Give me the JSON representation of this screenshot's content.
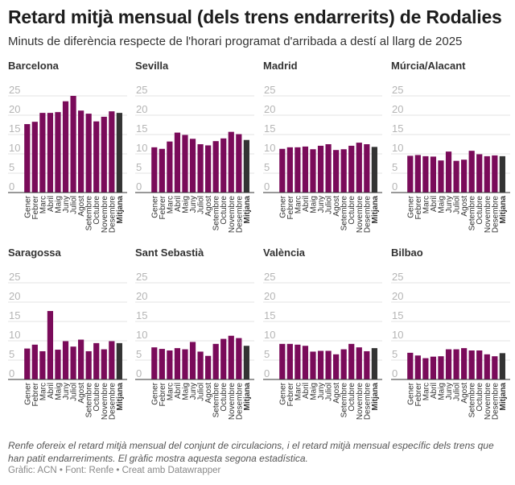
{
  "header": {
    "title": "Retard mitjà mensual (dels trens endarrerits) de Rodalies",
    "subtitle": "Minuts de diferència respecte de l'horari programat d'arribada a destí al llarg de 2025"
  },
  "colors": {
    "bar": "#7a0b5a",
    "average": "#333333",
    "grid": "#e3e3e3",
    "tick": "#b5b5b5"
  },
  "chart_data": [
    {
      "type": "bar",
      "title": "Barcelona",
      "categories": [
        "Gener",
        "Febrer",
        "Marc",
        "Abril",
        "Maig",
        "Juny",
        "Juliol",
        "Agost",
        "Setembre",
        "Octubre",
        "Novembre",
        "Desembre",
        "Mitjana"
      ],
      "values": [
        17.7,
        18.3,
        20.6,
        20.6,
        20.8,
        23.6,
        25.0,
        21.2,
        20.4,
        18.4,
        19.6,
        21.0,
        20.6
      ],
      "yticks": [
        0,
        5,
        10,
        15,
        20,
        25
      ],
      "ylim": [
        0,
        25
      ]
    },
    {
      "type": "bar",
      "title": "Sevilla",
      "categories": [
        "Gener",
        "Febrer",
        "Marc",
        "Abril",
        "Maig",
        "Juny",
        "Juliol",
        "Agost",
        "Setembre",
        "Octubre",
        "Novembre",
        "Desembre",
        "Mitjana"
      ],
      "values": [
        11.7,
        11.3,
        13.2,
        15.5,
        14.9,
        13.9,
        12.5,
        12.2,
        13.3,
        14.0,
        15.7,
        15.1,
        13.6
      ],
      "yticks": [
        0,
        5,
        10,
        15,
        20,
        25
      ],
      "ylim": [
        0,
        25
      ]
    },
    {
      "type": "bar",
      "title": "Madrid",
      "categories": [
        "Gener",
        "Febrer",
        "Marc",
        "Abril",
        "Maig",
        "Juny",
        "Juliol",
        "Agost",
        "Setembre",
        "Octubre",
        "Novembre",
        "Desembre",
        "Mitjana"
      ],
      "values": [
        11.3,
        11.7,
        11.7,
        11.9,
        11.2,
        12.1,
        12.5,
        11.0,
        11.2,
        12.1,
        12.9,
        12.5,
        11.8
      ],
      "yticks": [
        0,
        5,
        10,
        15,
        20,
        25
      ],
      "ylim": [
        0,
        25
      ]
    },
    {
      "type": "bar",
      "title": "Múrcia/Alacant",
      "categories": [
        "Gener",
        "Febrer",
        "Marc",
        "Abril",
        "Maig",
        "Juny",
        "Juliol",
        "Agost",
        "Setembre",
        "Octubre",
        "Novembre",
        "Desembre",
        "Mitjana"
      ],
      "values": [
        9.5,
        9.7,
        9.4,
        9.3,
        8.3,
        10.6,
        8.2,
        8.5,
        10.8,
        9.9,
        9.4,
        9.6,
        9.4
      ],
      "yticks": [
        0,
        5,
        10,
        15,
        20,
        25
      ],
      "ylim": [
        0,
        25
      ]
    },
    {
      "type": "bar",
      "title": "Saragossa",
      "categories": [
        "Gener",
        "Febrer",
        "Marc",
        "Abril",
        "Maig",
        "Juny",
        "Juliol",
        "Agost",
        "Setembre",
        "Octubre",
        "Novembre",
        "Desembre",
        "Mitjana"
      ],
      "values": [
        8.0,
        9.0,
        7.3,
        17.7,
        7.7,
        9.9,
        8.5,
        10.3,
        7.3,
        9.4,
        7.8,
        9.9,
        9.4
      ],
      "yticks": [
        0,
        5,
        10,
        15,
        20,
        25
      ],
      "ylim": [
        0,
        25
      ]
    },
    {
      "type": "bar",
      "title": "Sant Sebastià",
      "categories": [
        "Gener",
        "Febrer",
        "Marc",
        "Abril",
        "Maig",
        "Juny",
        "Juliol",
        "Agost",
        "Setembre",
        "Octubre",
        "Novembre",
        "Desembre",
        "Mitjana"
      ],
      "values": [
        8.3,
        7.9,
        7.5,
        8.1,
        7.8,
        9.7,
        7.2,
        6.1,
        9.2,
        10.5,
        11.3,
        10.7,
        8.7
      ],
      "yticks": [
        0,
        5,
        10,
        15,
        20,
        25
      ],
      "ylim": [
        0,
        25
      ]
    },
    {
      "type": "bar",
      "title": "València",
      "categories": [
        "Gener",
        "Febrer",
        "Marc",
        "Abril",
        "Maig",
        "Juny",
        "Juliol",
        "Agost",
        "Setembre",
        "Octubre",
        "Novembre",
        "Desembre",
        "Mitjana"
      ],
      "values": [
        9.2,
        9.2,
        9.0,
        8.7,
        7.2,
        7.4,
        7.4,
        6.5,
        7.8,
        9.2,
        8.3,
        7.3,
        8.1
      ],
      "yticks": [
        0,
        5,
        10,
        15,
        20,
        25
      ],
      "ylim": [
        0,
        25
      ]
    },
    {
      "type": "bar",
      "title": "Bilbao",
      "categories": [
        "Gener",
        "Febrer",
        "Marc",
        "Abril",
        "Maig",
        "Juny",
        "Juliol",
        "Agost",
        "Setembre",
        "Octubre",
        "Novembre",
        "Desembre",
        "Mitjana"
      ],
      "values": [
        6.9,
        6.2,
        5.5,
        5.9,
        6.0,
        7.8,
        7.8,
        8.1,
        7.5,
        7.5,
        6.5,
        6.0,
        6.8
      ],
      "yticks": [
        0,
        5,
        10,
        15,
        20,
        25
      ],
      "ylim": [
        0,
        25
      ]
    }
  ],
  "footer": {
    "notes": "Renfe ofereix el retard mitjà mensual del conjunt de circulacions, i el retard mitjà mensual específic dels trens que han patit endarreriments. El gràfic mostra aquesta segona estadística.",
    "credit": "Gràfic: ACN • Font: Renfe • Creat amb Datawrapper"
  }
}
